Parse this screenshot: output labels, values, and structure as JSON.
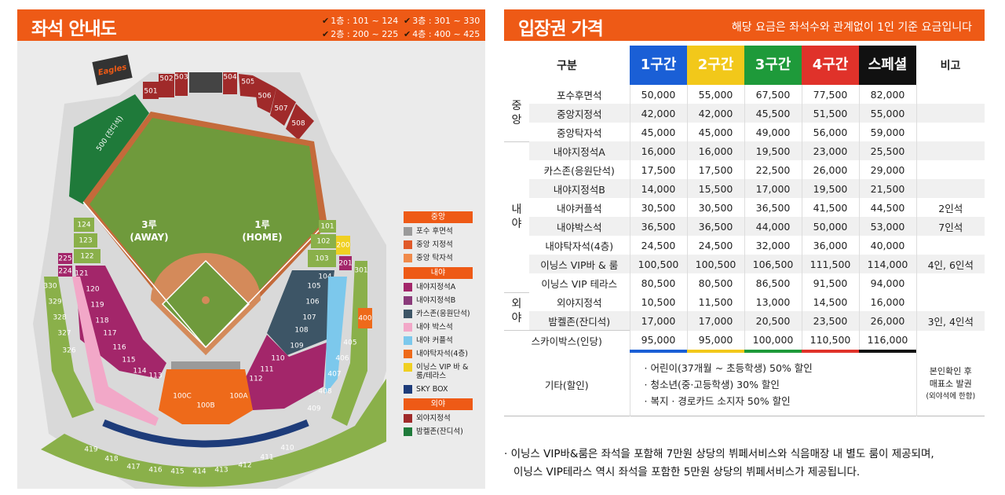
{
  "left": {
    "title": "좌석 안내도",
    "floors": [
      {
        "label": "1층 : 101 ~ 124"
      },
      {
        "label": "3층 : 301 ~ 330"
      },
      {
        "label": "2층 : 200 ~ 225"
      },
      {
        "label": "4층 : 400 ~ 425"
      }
    ],
    "field": {
      "third_base": "3루",
      "away": "(AWAY)",
      "first_base": "1루",
      "home": "(HOME)"
    },
    "logo_text": "Eagles",
    "sections": {
      "s500": "500 (잔디석)",
      "s501": "501",
      "s502": "502",
      "s503": "503",
      "s504": "504",
      "s505": "505",
      "s506": "506",
      "s507": "507",
      "s508": "508",
      "s124": "124",
      "s123": "123",
      "s122": "122",
      "s121": "121",
      "s120": "120",
      "s119": "119",
      "s118": "118",
      "s117": "117",
      "s116": "116",
      "s115": "115",
      "s114": "114",
      "s113": "113",
      "s112": "112",
      "s111": "111",
      "s110": "110",
      "s109": "109",
      "s108": "108",
      "s107": "107",
      "s106": "106",
      "s105": "105",
      "s104": "104",
      "s103": "103",
      "s102": "102",
      "s101": "101",
      "s100a": "100A",
      "s100b": "100B",
      "s100c": "100C",
      "s200": "200",
      "s201": "201",
      "s225": "225",
      "s224": "224",
      "s330": "330",
      "s329": "329",
      "s328": "328",
      "s327": "327",
      "s326": "326",
      "s301": "301",
      "s400": "400",
      "s405": "405",
      "s406": "406",
      "s407": "407",
      "s408": "408",
      "s409": "409",
      "s410": "410",
      "s411": "411",
      "s412": "412",
      "s413": "413",
      "s414": "414",
      "s415": "415",
      "s416": "416",
      "s417": "417",
      "s418": "418",
      "s419": "419"
    },
    "legend": [
      {
        "heading": "중앙",
        "items": [
          {
            "label": "포수 후면석",
            "color": "#9a9a9a"
          },
          {
            "label": "중앙 지정석",
            "color": "#e05a2a"
          },
          {
            "label": "중앙 탁자석",
            "color": "#f08a4a"
          }
        ]
      },
      {
        "heading": "내야",
        "items": [
          {
            "label": "내야지정석A",
            "color": "#a3266a"
          },
          {
            "label": "내야지정석B",
            "color": "#8a3a7a"
          },
          {
            "label": "카스존(응원단석)",
            "color": "#3d5566"
          },
          {
            "label": "내야 박스석",
            "color": "#f2a8c8"
          },
          {
            "label": "내야 커플석",
            "color": "#7cc8ec"
          },
          {
            "label": "내야탁자석(4층)",
            "color": "#ee6a1a"
          },
          {
            "label": "이닝스 VIP 바 & 룸/테라스",
            "color": "#f0d022"
          },
          {
            "label": "SKY BOX",
            "color": "#1e3c7a"
          }
        ]
      },
      {
        "heading": "외야",
        "items": [
          {
            "label": "외야지정석",
            "color": "#a02a2a"
          },
          {
            "label": "밤켈존(잔디석)",
            "color": "#1f7a3a"
          }
        ]
      }
    ]
  },
  "right": {
    "title": "입장권 가격",
    "note": "해당 요금은 좌석수와 관계없이 1인 기준 요금입니다",
    "headers": {
      "category": "구분",
      "zone1": "1구간",
      "zone2": "2구간",
      "zone3": "3구간",
      "zone4": "4구간",
      "special": "스페셜",
      "remark": "비고"
    },
    "zone_colors": {
      "zone1": "#1a5fd6",
      "zone2": "#f2c81a",
      "zone3": "#1e9a3a",
      "zone4": "#e0322a",
      "special": "#111111"
    },
    "groups": {
      "center": "중\n앙",
      "infield": "내\n야",
      "outfield": "외\n야"
    },
    "rows": [
      {
        "label": "포수후면석",
        "v": [
          "50,000",
          "55,000",
          "67,500",
          "77,500",
          "82,000"
        ],
        "note": ""
      },
      {
        "label": "중앙지정석",
        "v": [
          "42,000",
          "42,000",
          "45,500",
          "51,500",
          "55,000"
        ],
        "note": ""
      },
      {
        "label": "중앙탁자석",
        "v": [
          "45,000",
          "45,000",
          "49,000",
          "56,000",
          "59,000"
        ],
        "note": ""
      },
      {
        "label": "내야지정석A",
        "v": [
          "16,000",
          "16,000",
          "19,500",
          "23,000",
          "25,500"
        ],
        "note": ""
      },
      {
        "label": "카스존(응원단석)",
        "v": [
          "17,500",
          "17,500",
          "22,500",
          "26,000",
          "29,000"
        ],
        "note": ""
      },
      {
        "label": "내야지정석B",
        "v": [
          "14,000",
          "15,500",
          "17,000",
          "19,500",
          "21,500"
        ],
        "note": ""
      },
      {
        "label": "내야커플석",
        "v": [
          "30,500",
          "30,500",
          "36,500",
          "41,500",
          "44,500"
        ],
        "note": "2인석"
      },
      {
        "label": "내야박스석",
        "v": [
          "36,500",
          "36,500",
          "44,000",
          "50,000",
          "53,000"
        ],
        "note": "7인석"
      },
      {
        "label": "내야탁자석(4층)",
        "v": [
          "24,500",
          "24,500",
          "32,000",
          "36,000",
          "40,000"
        ],
        "note": ""
      },
      {
        "label": "이닝스 VIP바 & 룸",
        "v": [
          "100,500",
          "100,500",
          "106,500",
          "111,500",
          "114,000"
        ],
        "note": "4인, 6인석"
      },
      {
        "label": "이닝스 VIP 테라스",
        "v": [
          "80,500",
          "80,500",
          "86,500",
          "91,500",
          "94,000"
        ],
        "note": ""
      },
      {
        "label": "외야지정석",
        "v": [
          "10,500",
          "11,500",
          "13,000",
          "14,500",
          "16,000"
        ],
        "note": ""
      },
      {
        "label": "밤켈존(잔디석)",
        "v": [
          "17,000",
          "17,000",
          "20,500",
          "23,500",
          "26,000"
        ],
        "note": "3인, 4인석"
      },
      {
        "label": "스카이박스(인당)",
        "v": [
          "95,000",
          "95,000",
          "100,000",
          "110,500",
          "116,000"
        ],
        "note": ""
      }
    ],
    "etc": {
      "label": "기타(할인)",
      "items": [
        "· 어린이(37개월 ~ 초등학생) 50% 할인",
        "· 청소년(중·고등학생) 30% 할인",
        "· 복지 · 경로카드 소지자 50% 할인"
      ],
      "note_line1": "본인확인 후",
      "note_line2": "매표소 발권",
      "note_line3": "(외야석에 한함)"
    },
    "footnote_line1": "· 이닝스 VIP바&룸은 좌석을 포함해 7만원 상당의 뷔페서비스와 식음매장 내 별도 룸이 제공되며,",
    "footnote_line2": "이닝스 VIP테라스 역시 좌석을 포함한 5만원 상당의 뷔페서비스가 제공됩니다."
  }
}
